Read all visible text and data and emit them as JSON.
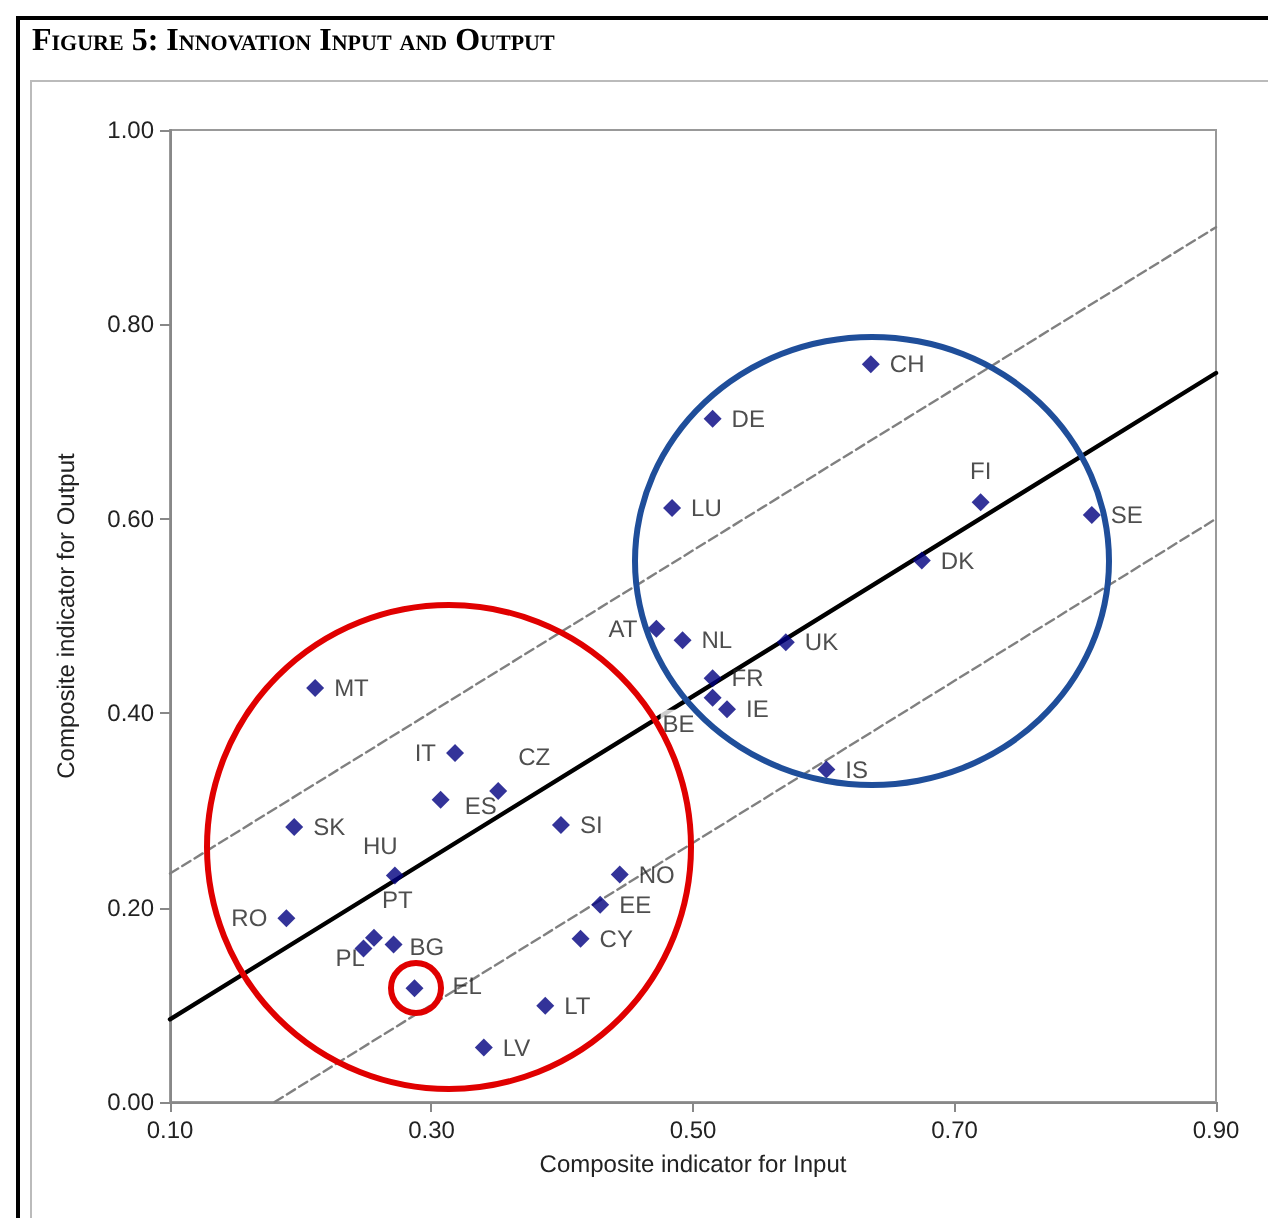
{
  "chart_data": {
    "type": "scatter",
    "title": "Figure 5: Innovation Input and Output",
    "xlabel": "Composite indicator for Input",
    "ylabel": "Composite indicator for Output",
    "xlim": [
      0.1,
      0.9
    ],
    "ylim": [
      0,
      1
    ],
    "xticks": [
      {
        "value": 0.1,
        "label": "0.10"
      },
      {
        "value": 0.3,
        "label": "0.30"
      },
      {
        "value": 0.5,
        "label": "0.50"
      },
      {
        "value": 0.7,
        "label": "0.70"
      },
      {
        "value": 0.9,
        "label": "0.90"
      }
    ],
    "yticks": [
      {
        "value": 0,
        "label": "0.00"
      },
      {
        "value": 0.2,
        "label": "0.20"
      },
      {
        "value": 0.4,
        "label": "0.40"
      },
      {
        "value": 0.6,
        "label": "0.60"
      },
      {
        "value": 0.8,
        "label": "0.80"
      },
      {
        "value": 1,
        "label": "1.00"
      }
    ],
    "grid": false,
    "series": [
      {
        "color": "#000080",
        "marker": "diamond",
        "x": [
          0.211,
          0.318,
          0.351,
          0.307,
          0.195,
          0.399,
          0.272,
          0.444,
          0.189,
          0.429,
          0.256,
          0.248,
          0.271,
          0.414,
          0.287,
          0.387,
          0.34,
          0.636,
          0.515,
          0.484,
          0.72,
          0.805,
          0.675,
          0.472,
          0.492,
          0.571,
          0.515,
          0.515,
          0.526,
          0.602
        ],
        "values": [
          0.426,
          0.359,
          0.32,
          0.311,
          0.283,
          0.285,
          0.233,
          0.234,
          0.189,
          0.203,
          0.169,
          0.158,
          0.162,
          0.168,
          0.117,
          0.099,
          0.056,
          0.759,
          0.703,
          0.611,
          0.617,
          0.604,
          0.557,
          0.487,
          0.475,
          0.473,
          0.436,
          0.416,
          0.404,
          0.342
        ],
        "value_labels": [
          "MT",
          "IT",
          "CZ",
          "ES",
          "SK",
          "SI",
          "HU",
          "NO",
          "RO",
          "EE",
          "PT",
          "PL",
          "BG",
          "CY",
          "EL",
          "LT",
          "LV",
          "CH",
          "DE",
          "LU",
          "FI",
          "SE",
          "DK",
          "AT",
          "NL",
          "UK",
          "FR",
          "BE",
          "IE",
          "IS"
        ]
      },
      {
        "type": "line",
        "color": "#000000",
        "marker": "none",
        "line_style": "solid",
        "x": [
          0.1,
          0.9
        ],
        "values": [
          0.085,
          0.75
        ]
      },
      {
        "type": "line",
        "color": "#808080",
        "marker": "none",
        "line_style": "dashed",
        "x": [
          0.1,
          0.9
        ],
        "values": [
          0.235,
          0.9
        ]
      },
      {
        "type": "line",
        "color": "#808080",
        "marker": "none",
        "line_style": "dashed",
        "x": [
          0.18,
          0.9
        ],
        "values": [
          0,
          0.6
        ]
      }
    ]
  }
}
